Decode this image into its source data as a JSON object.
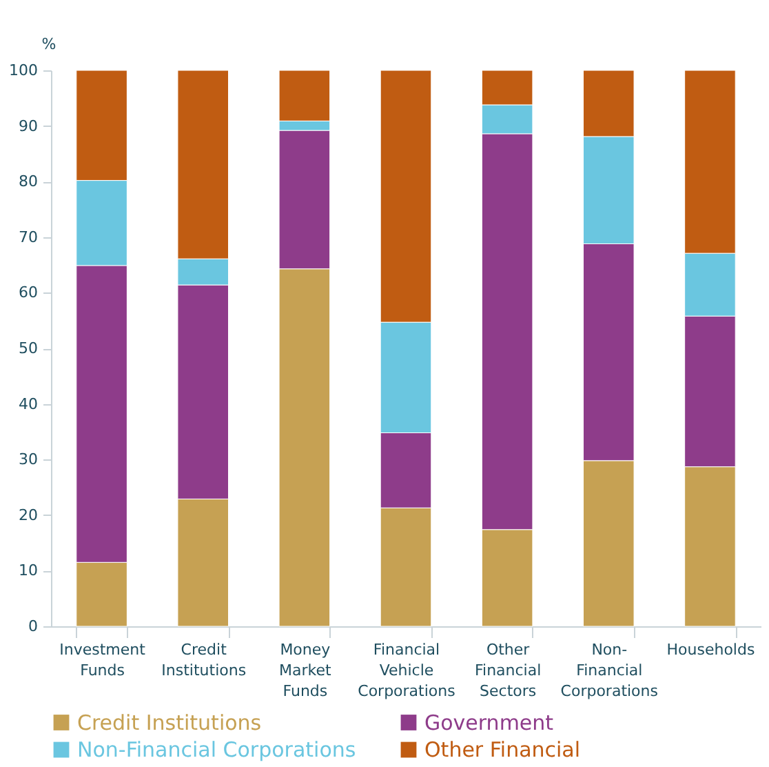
{
  "chart_data": {
    "type": "bar",
    "stacked": true,
    "ylabel": "%",
    "categories": [
      "Investment Funds",
      "Credit Institutions",
      "Money Market Funds",
      "Financial Vehicle Corporations",
      "Other Financial Sectors",
      "Non-Financial Corporations",
      "Households"
    ],
    "series": [
      {
        "name": "Credit Institutions",
        "color": "#c6a153",
        "values": [
          11.5,
          22.9,
          64.3,
          21.3,
          17.4,
          29.8,
          28.7
        ]
      },
      {
        "name": "Government",
        "color": "#8e3c8a",
        "values": [
          53.4,
          38.5,
          24.9,
          13.5,
          71.2,
          39.0,
          27.1
        ]
      },
      {
        "name": "Non-Financial Corporations",
        "color": "#6ac6e0",
        "values": [
          15.3,
          4.7,
          1.7,
          19.9,
          5.2,
          19.3,
          11.3
        ]
      },
      {
        "name": "Other Financial",
        "color": "#c05c12",
        "values": [
          19.8,
          33.9,
          9.1,
          45.3,
          6.2,
          11.9,
          32.9
        ]
      }
    ],
    "ylim": [
      0,
      100
    ],
    "yticks": [
      0,
      10,
      20,
      30,
      40,
      50,
      60,
      70,
      80,
      90,
      100
    ],
    "grid": false,
    "legend": "bottom"
  }
}
